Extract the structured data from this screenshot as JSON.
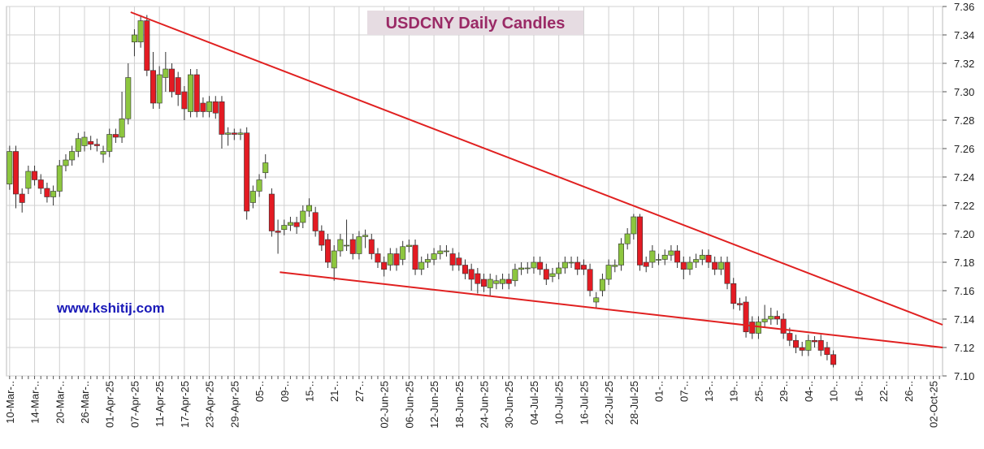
{
  "chart_data": {
    "type": "candlestick",
    "title": "USDCNY Daily Candles",
    "annotations": [
      "www.kshitij.com"
    ],
    "categories": [
      "10-Mar-..",
      null,
      null,
      null,
      "14-Mar-..",
      null,
      null,
      null,
      "20-Mar-..",
      null,
      null,
      null,
      "26-Mar-..",
      null,
      null,
      null,
      "01-Apr-25",
      null,
      null,
      null,
      "07-Apr-25",
      null,
      null,
      null,
      "11-Apr-25",
      null,
      null,
      null,
      "17-Apr-25",
      null,
      null,
      null,
      "23-Apr-25",
      null,
      null,
      null,
      "29-Apr-25",
      null,
      null,
      null,
      "05-..",
      null,
      null,
      null,
      "09-..",
      null,
      null,
      null,
      "15-..",
      null,
      null,
      null,
      "21-..",
      null,
      null,
      null,
      "27-..",
      null,
      null,
      null,
      "02-Jun-25",
      null,
      null,
      null,
      "06-Jun-25",
      null,
      null,
      null,
      "12-Jun-25",
      null,
      null,
      null,
      "18-Jun-25",
      null,
      null,
      null,
      "24-Jun-25",
      null,
      null,
      null,
      "30-Jun-25",
      null,
      null,
      null,
      "04-Jul-25",
      null,
      null,
      null,
      "10-Jul-25",
      null,
      null,
      null,
      "16-Jul-25",
      null,
      null,
      null,
      "22-Jul-25",
      null,
      null,
      null,
      "28-Jul-25",
      null,
      null,
      null,
      "01-..",
      null,
      null,
      null,
      "07-..",
      null,
      null,
      null,
      "13-..",
      null,
      null,
      null,
      "19-..",
      null,
      null,
      null,
      "25-..",
      null,
      null,
      null,
      "29-..",
      null,
      null,
      null,
      "04-..",
      null,
      null,
      null,
      "10-..",
      null,
      null,
      null,
      "16-..",
      null,
      null,
      null,
      "22-..",
      null,
      null,
      null,
      "26-..",
      null,
      null,
      null,
      "02-Oct-25",
      null
    ],
    "open": [
      7.235,
      7.258,
      7.228,
      7.232,
      7.244,
      7.238,
      7.232,
      7.226,
      7.23,
      7.248,
      7.252,
      7.258,
      7.262,
      7.265,
      7.263,
      7.256,
      7.258,
      7.27,
      7.268,
      7.281,
      7.335,
      7.335,
      7.35,
      7.315,
      7.292,
      7.31,
      7.316,
      7.31,
      7.3,
      7.286,
      7.312,
      7.292,
      7.286,
      7.293,
      7.293,
      7.27,
      7.271,
      7.27,
      7.271,
      7.222,
      7.23,
      7.243,
      7.228,
      7.202,
      7.203,
      7.206,
      7.208,
      7.208,
      7.216,
      7.215,
      7.202,
      7.196,
      7.176,
      7.188,
      7.192,
      7.196,
      7.186,
      7.198,
      7.196,
      7.186,
      7.18,
      7.178,
      7.186,
      7.182,
      7.191,
      7.192,
      7.175,
      7.18,
      7.182,
      7.186,
      7.188,
      7.186,
      7.183,
      7.178,
      7.175,
      7.172,
      7.168,
      7.162,
      7.165,
      7.165,
      7.168,
      7.167,
      7.175,
      7.176,
      7.176,
      7.18,
      7.175,
      7.17,
      7.172,
      7.176,
      7.18,
      7.18,
      7.178,
      7.175,
      7.152,
      7.16,
      7.168,
      7.177,
      7.178,
      7.193,
      7.2,
      7.212,
      7.18,
      7.18,
      7.182,
      7.182,
      7.185,
      7.188,
      7.18,
      7.175,
      7.18,
      7.182,
      7.185,
      7.18,
      7.175,
      7.18,
      7.165,
      7.151,
      7.152,
      7.138,
      7.13,
      7.138,
      7.14,
      7.142,
      7.14,
      7.13,
      7.125,
      7.12,
      7.118,
      7.125,
      7.125,
      7.12,
      7.115,
      null,
      null,
      null,
      null,
      null,
      null,
      null,
      null,
      null,
      null,
      null,
      null,
      null,
      null,
      null,
      null,
      null
    ],
    "high": [
      7.262,
      7.262,
      7.232,
      7.248,
      7.248,
      7.242,
      7.236,
      7.234,
      7.252,
      7.256,
      7.262,
      7.271,
      7.272,
      7.269,
      7.267,
      7.262,
      7.274,
      7.274,
      7.3,
      7.32,
      7.344,
      7.354,
      7.354,
      7.328,
      7.318,
      7.328,
      7.32,
      7.314,
      7.304,
      7.316,
      7.316,
      7.296,
      7.297,
      7.297,
      7.297,
      7.275,
      7.274,
      7.274,
      7.275,
      7.234,
      7.242,
      7.256,
      7.232,
      7.21,
      7.21,
      7.212,
      7.212,
      7.22,
      7.225,
      7.219,
      7.206,
      7.2,
      7.192,
      7.2,
      7.21,
      7.2,
      7.202,
      7.203,
      7.2,
      7.19,
      7.184,
      7.19,
      7.19,
      7.195,
      7.196,
      7.196,
      7.184,
      7.186,
      7.19,
      7.192,
      7.192,
      7.19,
      7.187,
      7.182,
      7.179,
      7.176,
      7.172,
      7.172,
      7.171,
      7.172,
      7.172,
      7.179,
      7.18,
      7.18,
      7.184,
      7.184,
      7.179,
      7.176,
      7.18,
      7.184,
      7.184,
      7.184,
      7.182,
      7.179,
      7.159,
      7.172,
      7.182,
      7.182,
      7.197,
      7.204,
      7.214,
      7.214,
      7.184,
      7.192,
      7.186,
      7.189,
      7.192,
      7.192,
      7.184,
      7.184,
      7.186,
      7.189,
      7.189,
      7.184,
      7.184,
      7.184,
      7.169,
      7.155,
      7.156,
      7.142,
      7.142,
      7.15,
      7.148,
      7.146,
      7.144,
      7.134,
      7.129,
      7.124,
      7.129,
      7.128,
      7.129,
      7.124,
      7.118,
      null,
      null,
      null,
      null,
      null,
      null,
      null,
      null,
      null,
      null,
      null,
      null,
      null,
      null,
      null,
      null,
      null
    ],
    "low": [
      7.231,
      7.218,
      7.215,
      7.228,
      7.234,
      7.228,
      7.222,
      7.22,
      7.226,
      7.244,
      7.248,
      7.254,
      7.258,
      7.259,
      7.258,
      7.25,
      7.254,
      7.264,
      7.264,
      7.277,
      7.325,
      7.331,
      7.311,
      7.288,
      7.288,
      7.3,
      7.296,
      7.29,
      7.28,
      7.282,
      7.282,
      7.282,
      7.282,
      7.281,
      7.26,
      7.262,
      7.266,
      7.266,
      7.21,
      7.218,
      7.226,
      7.239,
      7.198,
      7.186,
      7.199,
      7.202,
      7.2,
      7.204,
      7.212,
      7.198,
      7.188,
      7.176,
      7.167,
      7.184,
      7.188,
      7.182,
      7.182,
      7.19,
      7.182,
      7.176,
      7.17,
      7.174,
      7.174,
      7.178,
      7.187,
      7.171,
      7.171,
      7.176,
      7.178,
      7.182,
      7.184,
      7.174,
      7.174,
      7.168,
      7.16,
      7.158,
      7.159,
      7.156,
      7.161,
      7.161,
      7.161,
      7.163,
      7.171,
      7.172,
      7.172,
      7.171,
      7.164,
      7.166,
      7.168,
      7.172,
      7.176,
      7.171,
      7.171,
      7.156,
      7.148,
      7.156,
      7.164,
      7.173,
      7.174,
      7.189,
      7.196,
      7.174,
      7.173,
      7.176,
      7.178,
      7.178,
      7.181,
      7.176,
      7.168,
      7.171,
      7.176,
      7.178,
      7.176,
      7.171,
      7.171,
      7.161,
      7.147,
      7.146,
      7.127,
      7.126,
      7.126,
      7.134,
      7.136,
      7.136,
      7.126,
      7.121,
      7.116,
      7.114,
      7.114,
      7.12,
      7.114,
      7.111,
      7.106,
      null,
      null,
      null,
      null,
      null,
      null,
      null,
      null,
      null,
      null,
      null,
      null,
      null,
      null,
      null,
      null,
      null
    ],
    "close": [
      7.258,
      7.228,
      7.222,
      7.244,
      7.238,
      7.232,
      7.226,
      7.23,
      7.248,
      7.252,
      7.258,
      7.267,
      7.268,
      7.263,
      7.262,
      7.258,
      7.27,
      7.268,
      7.281,
      7.31,
      7.34,
      7.35,
      7.315,
      7.292,
      7.312,
      7.316,
      7.3,
      7.298,
      7.288,
      7.312,
      7.286,
      7.286,
      7.293,
      7.285,
      7.27,
      7.271,
      7.27,
      7.271,
      7.216,
      7.23,
      7.238,
      7.25,
      7.202,
      7.201,
      7.206,
      7.208,
      7.205,
      7.216,
      7.22,
      7.202,
      7.192,
      7.18,
      7.188,
      7.196,
      7.192,
      7.186,
      7.198,
      7.199,
      7.186,
      7.18,
      7.175,
      7.186,
      7.178,
      7.191,
      7.192,
      7.175,
      7.18,
      7.182,
      7.186,
      7.188,
      7.188,
      7.178,
      7.178,
      7.172,
      7.168,
      7.165,
      7.163,
      7.168,
      7.167,
      7.168,
      7.165,
      7.175,
      7.176,
      7.176,
      7.18,
      7.175,
      7.168,
      7.172,
      7.176,
      7.18,
      7.18,
      7.175,
      7.175,
      7.16,
      7.155,
      7.168,
      7.178,
      7.178,
      7.193,
      7.2,
      7.212,
      7.178,
      7.177,
      7.188,
      7.182,
      7.185,
      7.188,
      7.18,
      7.175,
      7.18,
      7.182,
      7.185,
      7.18,
      7.175,
      7.18,
      7.165,
      7.151,
      7.15,
      7.131,
      7.13,
      7.138,
      7.14,
      7.142,
      7.14,
      7.13,
      7.125,
      7.12,
      7.118,
      7.125,
      7.124,
      7.118,
      7.115,
      7.108,
      null,
      null,
      null,
      null,
      null,
      null,
      null,
      null,
      null,
      null,
      null,
      null,
      null,
      null,
      null,
      null,
      null
    ],
    "up_color": "#8dc63f",
    "down_color": "#e31b23",
    "trendlines": [
      {
        "color": "#e02020",
        "x": [
          19.4,
          149.5
        ],
        "values": [
          7.356,
          7.136
        ]
      },
      {
        "color": "#e02020",
        "x": [
          43.3,
          149.5
        ],
        "values": [
          7.173,
          7.12
        ]
      }
    ],
    "ylim": [
      7.1,
      7.36
    ],
    "yticks": [
      {
        "value": 7.1,
        "label": "7.10"
      },
      7.12,
      7.14,
      7.16,
      7.18,
      {
        "value": 7.2,
        "label": "7.20"
      },
      7.22,
      7.24,
      7.26,
      7.28,
      {
        "value": 7.3,
        "label": "7.30"
      },
      7.32,
      7.34,
      7.36
    ],
    "grid": true
  }
}
